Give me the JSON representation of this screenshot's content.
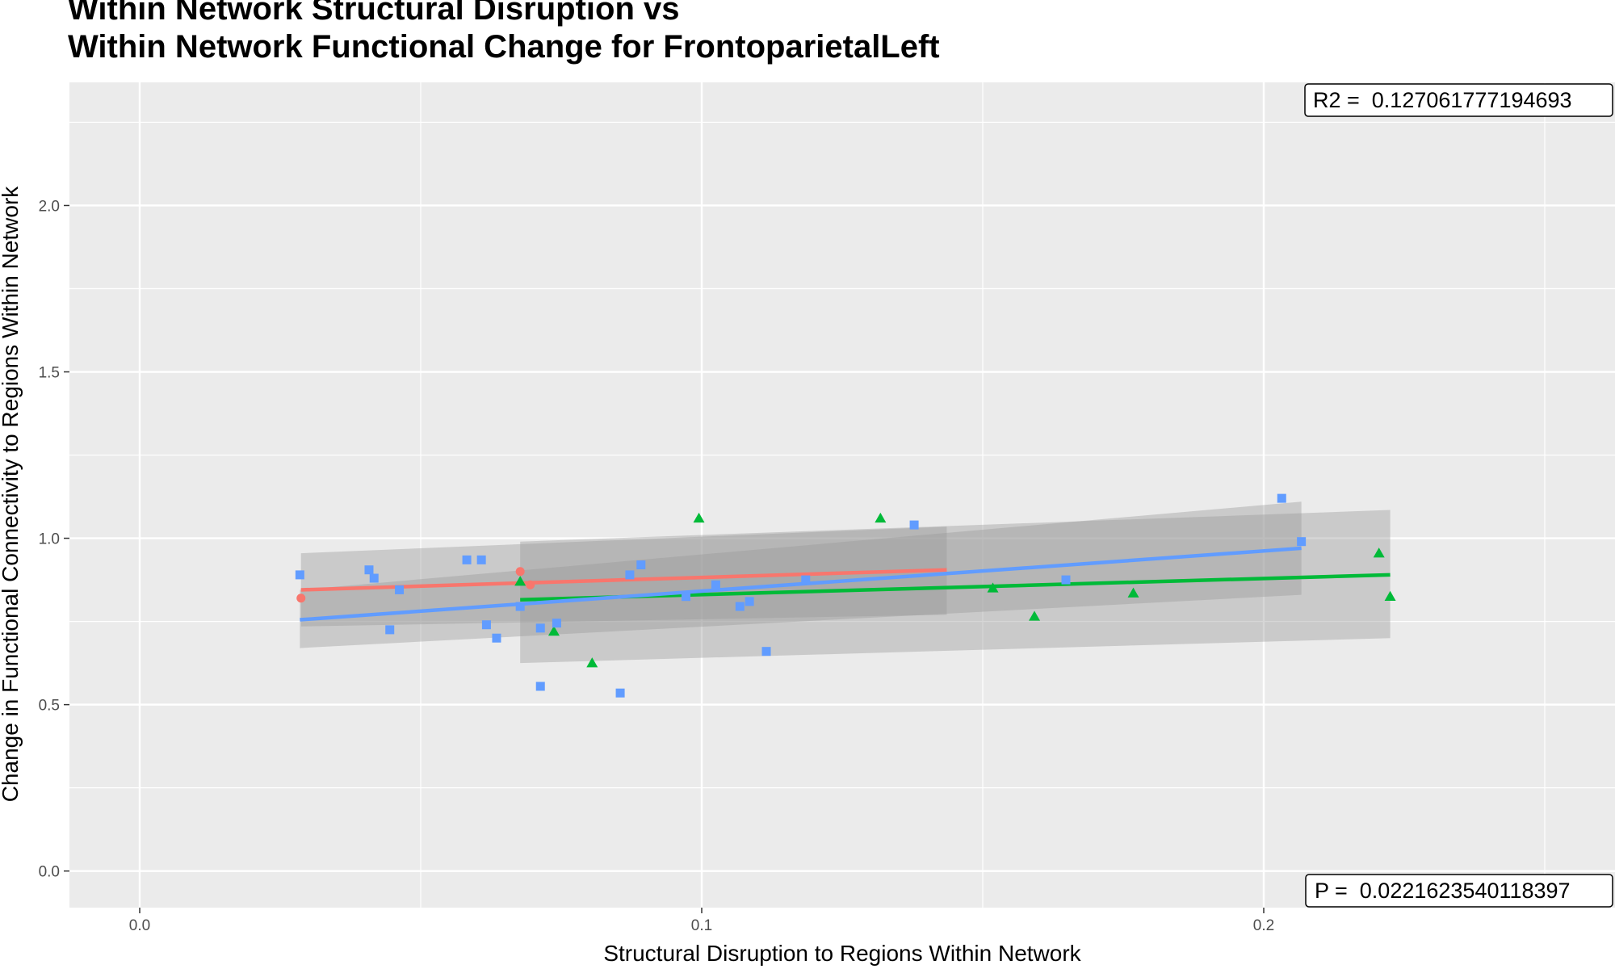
{
  "chart_data": {
    "type": "scatter",
    "title": [
      "Within Network Structural Disruption vs",
      "Within Network Functional Change for FrontoparietalLeft"
    ],
    "xlabel": "Structural Disruption to Regions Within Network",
    "ylabel": "Change in Functional Connectivity to Regions Within Network",
    "xlim": [
      -0.0125,
      0.2625
    ],
    "ylim": [
      -0.11,
      2.37
    ],
    "x_ticks": [
      0.0,
      0.1,
      0.2
    ],
    "x_tick_labels": [
      "0.0",
      "0.1",
      "0.2"
    ],
    "y_ticks": [
      0.0,
      0.5,
      1.0,
      1.5,
      2.0
    ],
    "y_tick_labels": [
      "0.0",
      "0.5",
      "1.0",
      "1.5",
      "2.0"
    ],
    "grid": true,
    "legend": "none",
    "annotations": {
      "r2": "R2 =  0.127061777194693",
      "p": "P =  0.0221623540118397"
    },
    "series": [
      {
        "color": "#f8766d",
        "marker": "circle",
        "points": [
          [
            0.0287,
            0.82
          ],
          [
            0.0677,
            0.9
          ],
          [
            0.0695,
            0.86
          ]
        ],
        "fit": {
          "x": [
            0.0287,
            0.1436
          ],
          "y": [
            0.845,
            0.905
          ]
        },
        "band": {
          "x": [
            0.0287,
            0.1436
          ],
          "upper": [
            0.955,
            1.035
          ],
          "lower": [
            0.735,
            0.77
          ]
        }
      },
      {
        "color": "#00ba38",
        "marker": "triangle",
        "points": [
          [
            0.0677,
            0.87
          ],
          [
            0.0737,
            0.72
          ],
          [
            0.0805,
            0.625
          ],
          [
            0.0995,
            1.06
          ],
          [
            0.1318,
            1.06
          ],
          [
            0.1518,
            0.85
          ],
          [
            0.1592,
            0.765
          ],
          [
            0.1768,
            0.835
          ],
          [
            0.2205,
            0.955
          ],
          [
            0.2225,
            0.825
          ]
        ],
        "fit": {
          "x": [
            0.0677,
            0.2225
          ],
          "y": [
            0.815,
            0.89
          ]
        },
        "band": {
          "x": [
            0.0677,
            0.2225
          ],
          "upper": [
            0.99,
            1.085
          ],
          "lower": [
            0.625,
            0.7
          ]
        }
      },
      {
        "color": "#619cff",
        "marker": "square",
        "points": [
          [
            0.0285,
            0.89
          ],
          [
            0.0408,
            0.905
          ],
          [
            0.0417,
            0.88
          ],
          [
            0.0445,
            0.725
          ],
          [
            0.0462,
            0.845
          ],
          [
            0.0582,
            0.935
          ],
          [
            0.0608,
            0.935
          ],
          [
            0.0617,
            0.74
          ],
          [
            0.0635,
            0.7
          ],
          [
            0.0677,
            0.795
          ],
          [
            0.0713,
            0.73
          ],
          [
            0.0713,
            0.555
          ],
          [
            0.0742,
            0.745
          ],
          [
            0.0855,
            0.535
          ],
          [
            0.0872,
            0.89
          ],
          [
            0.0892,
            0.92
          ],
          [
            0.0972,
            0.825
          ],
          [
            0.1025,
            0.86
          ],
          [
            0.1068,
            0.795
          ],
          [
            0.1085,
            0.81
          ],
          [
            0.1115,
            0.66
          ],
          [
            0.1185,
            0.875
          ],
          [
            0.1378,
            1.04
          ],
          [
            0.1648,
            0.875
          ],
          [
            0.2032,
            1.12
          ],
          [
            0.2067,
            0.99
          ]
        ],
        "fit": {
          "x": [
            0.0285,
            0.2067
          ],
          "y": [
            0.755,
            0.97
          ]
        },
        "band": {
          "x": [
            0.0285,
            0.2067
          ],
          "upper": [
            0.845,
            1.11
          ],
          "lower": [
            0.67,
            0.83
          ]
        }
      }
    ]
  }
}
